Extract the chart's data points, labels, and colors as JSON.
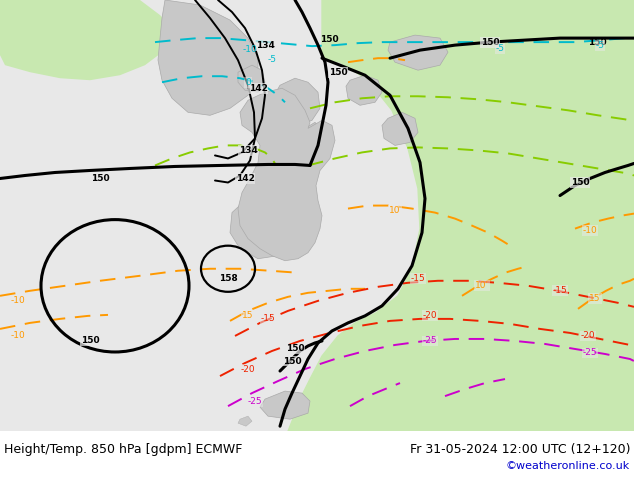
{
  "title_left": "Height/Temp. 850 hPa [gdpm] ECMWF",
  "title_right": "Fr 31-05-2024 12:00 UTC (12+120)",
  "credit": "©weatheronline.co.uk",
  "credit_color": "#0000cc",
  "bg_gray": "#e8e8e8",
  "green": "#c8e8b0",
  "land_gray": "#c8c8c8",
  "title_fontsize": 9,
  "credit_fontsize": 8,
  "black_lw": 2.2,
  "color_lw": 1.4,
  "orange": "#ff9900",
  "cyan": "#00bbcc",
  "lime": "#88cc00",
  "red": "#ee2200",
  "magenta": "#cc00cc"
}
